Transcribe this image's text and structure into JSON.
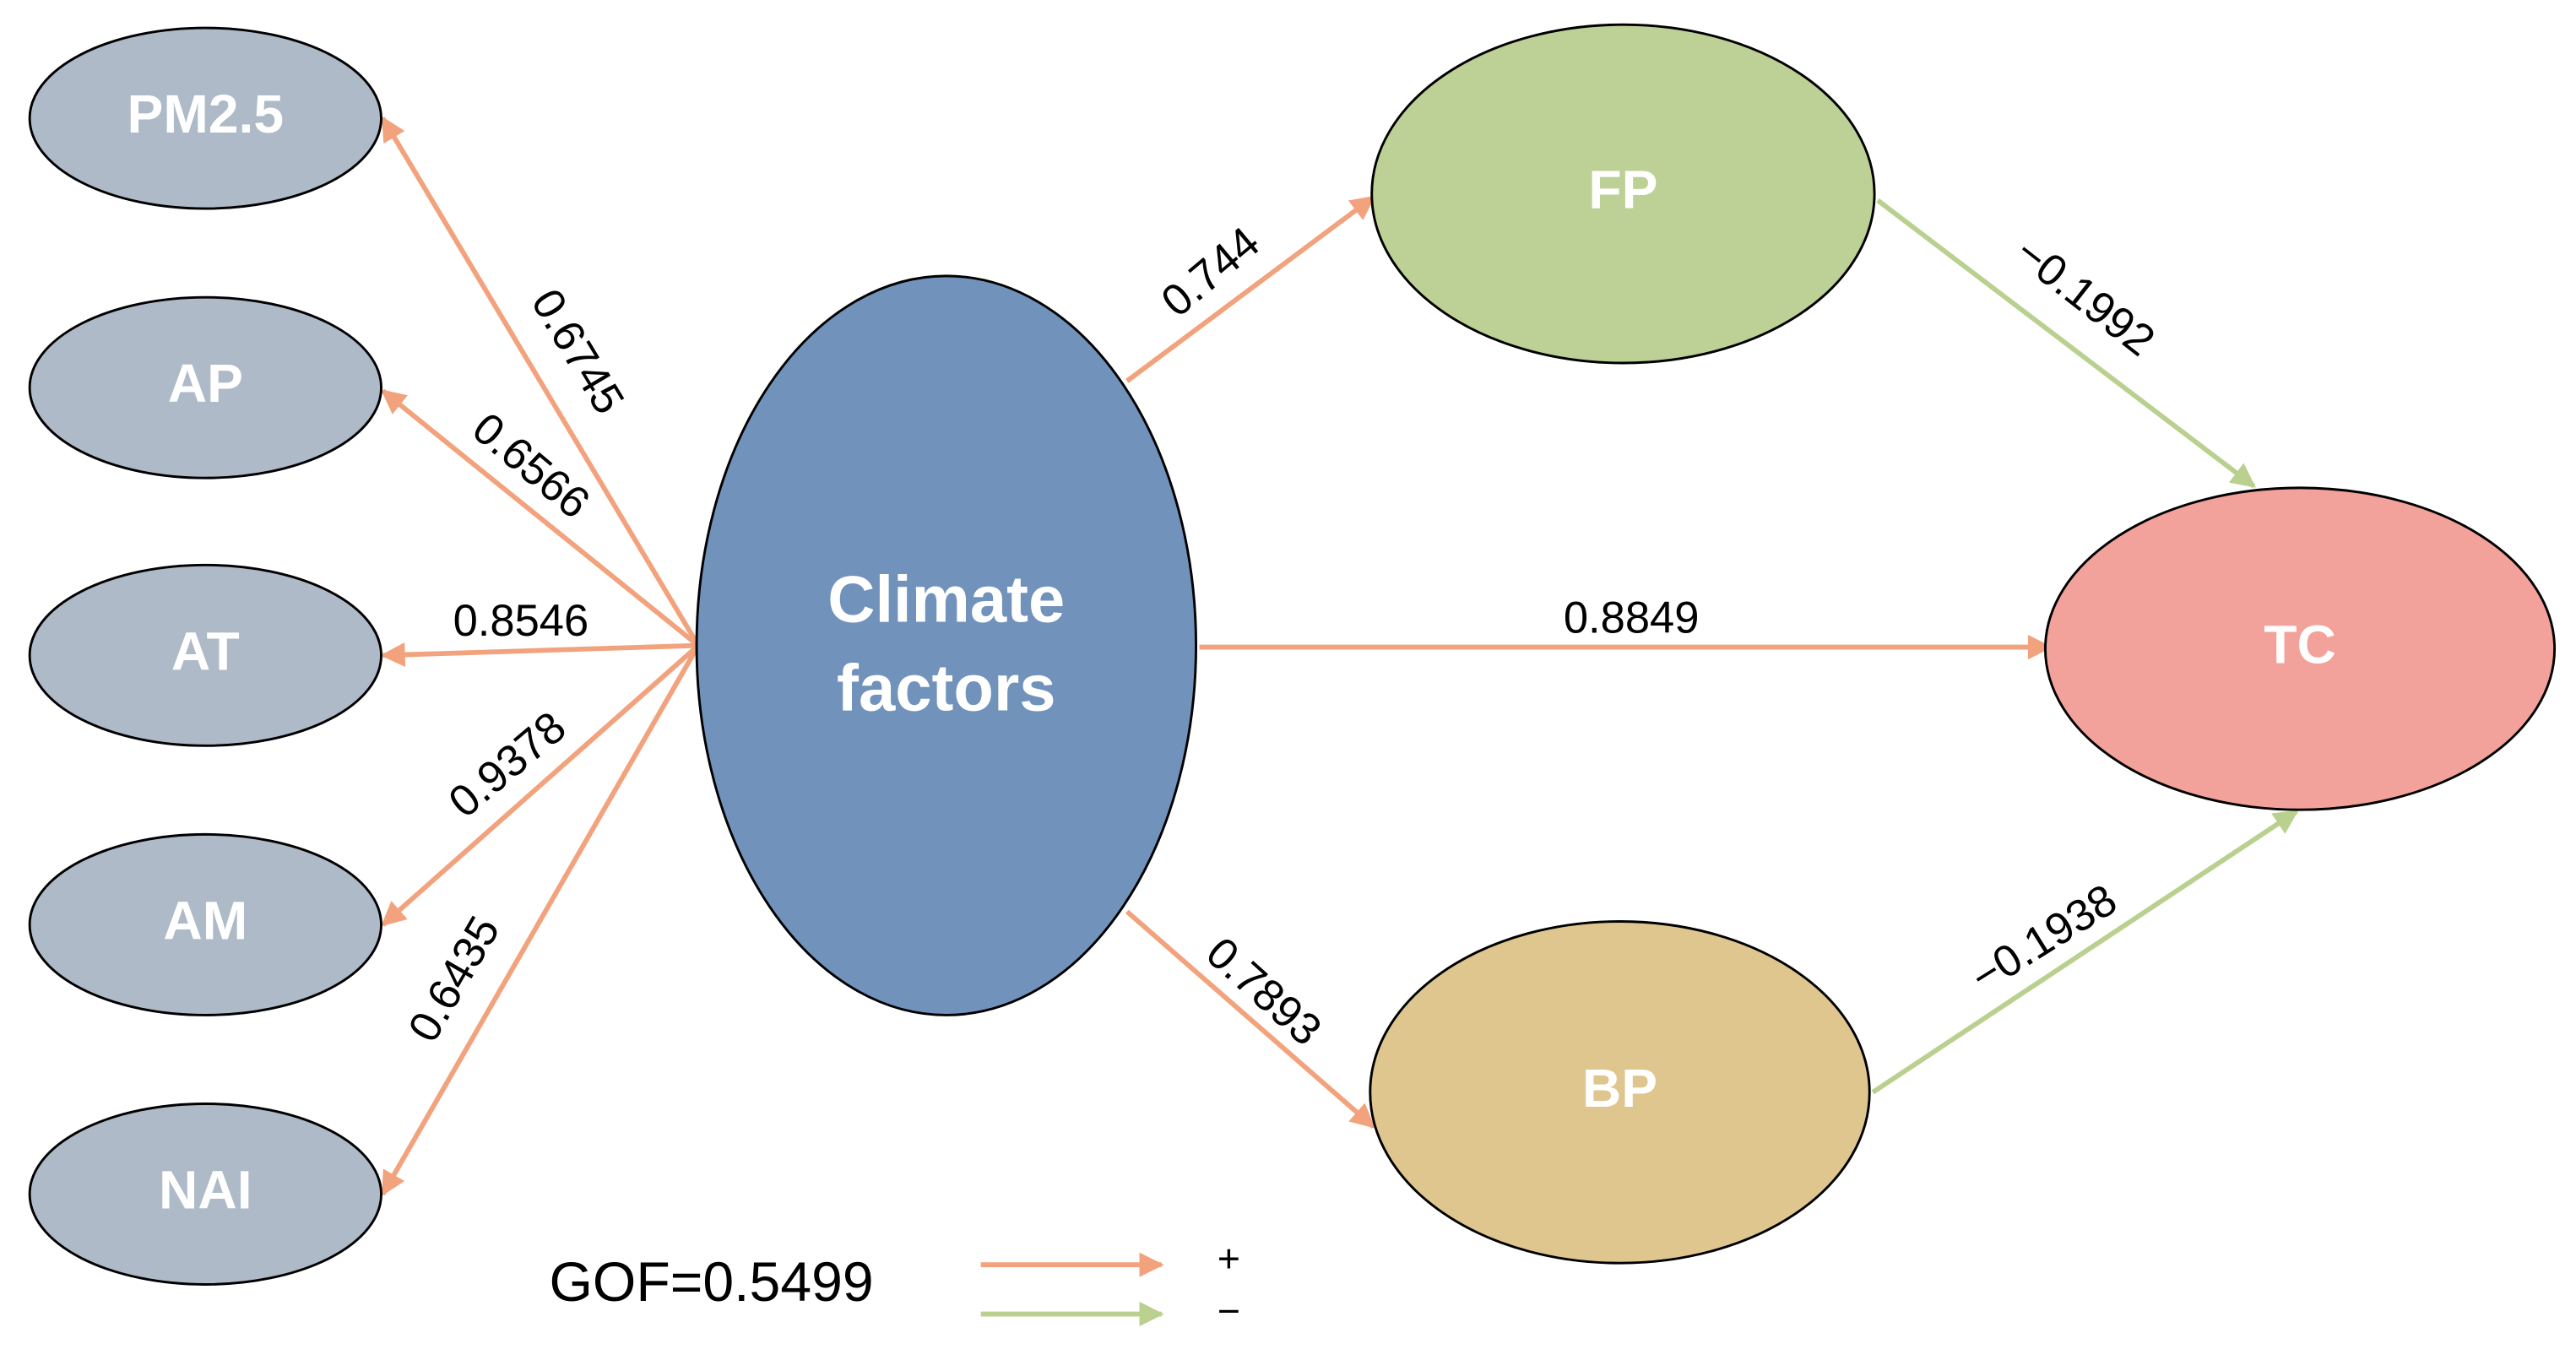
{
  "nodes": [
    {
      "label": "PM2.5"
    },
    {
      "label": "AP"
    },
    {
      "label": "AT"
    },
    {
      "label": "AM"
    },
    {
      "label": "NAI"
    },
    {
      "label": "Climate",
      "label2": "factors"
    },
    {
      "label": "FP"
    },
    {
      "label": "BP"
    },
    {
      "label": "TC"
    }
  ],
  "edges": [
    {
      "label": "0.6745"
    },
    {
      "label": "0.6566"
    },
    {
      "label": "0.8546"
    },
    {
      "label": "0.9378"
    },
    {
      "label": "0.6435"
    },
    {
      "label": "0.744"
    },
    {
      "label": "0.8849"
    },
    {
      "label": "0.7893"
    },
    {
      "label": "−0.1992"
    },
    {
      "label": "−0.1938"
    }
  ],
  "gof": "GOF=0.5499",
  "legend": {
    "positive": "+",
    "negative": "−"
  }
}
